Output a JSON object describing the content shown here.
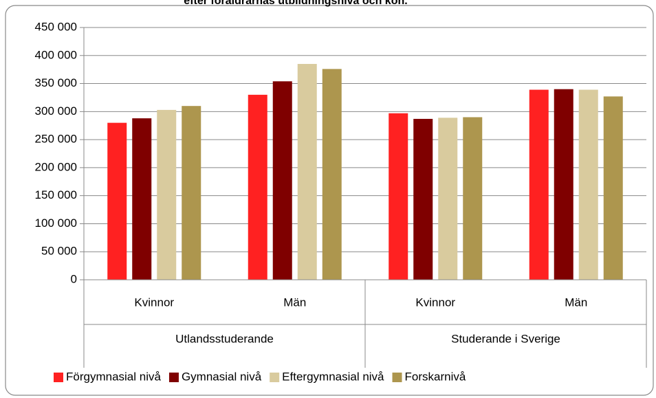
{
  "chart_data": {
    "type": "bar",
    "title": "efter föräldrarnas utbildningsnivå och kön.",
    "categories": [
      "Kvinnor",
      "Män",
      "Kvinnor",
      "Män"
    ],
    "groups": [
      "Utlandsstuderande",
      "Studerande i Sverige"
    ],
    "series": [
      {
        "name": "Förgymnasial nivå",
        "color": "#ff2121",
        "values": [
          280000,
          330000,
          297000,
          339000
        ]
      },
      {
        "name": "Gymnasial nivå",
        "color": "#7f0000",
        "values": [
          288000,
          354000,
          287000,
          340000
        ]
      },
      {
        "name": "Eftergymnasial nivå",
        "color": "#d9cb9e",
        "values": [
          303000,
          385000,
          289000,
          339000
        ]
      },
      {
        "name": "Forskarnivå",
        "color": "#ad964e",
        "values": [
          310000,
          376000,
          290000,
          327000
        ]
      }
    ],
    "ylim": [
      0,
      450000
    ],
    "yticks": [
      0,
      {
        "value": 50000,
        "label": "50 000"
      },
      {
        "value": 100000,
        "label": "100 000"
      },
      {
        "value": 150000,
        "label": "150 000"
      },
      {
        "value": 200000,
        "label": "200 000"
      },
      {
        "value": 250000,
        "label": "250 000"
      },
      {
        "value": 300000,
        "label": "300 000"
      },
      {
        "value": 350000,
        "label": "350 000"
      },
      {
        "value": 400000,
        "label": "400 000"
      },
      {
        "value": 450000,
        "label": "450 000"
      }
    ],
    "grid": true,
    "legend": "bottom"
  }
}
